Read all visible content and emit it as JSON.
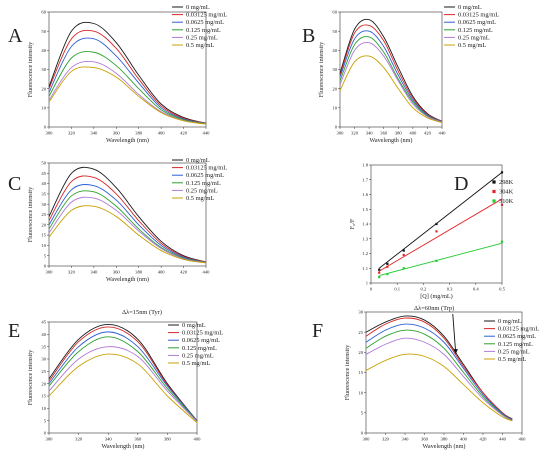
{
  "chart_data": [
    {
      "panel": "A",
      "type": "line",
      "xlabel": "Wavelength (nm)",
      "ylabel": "Fluorescence intensity",
      "xlim": [
        300,
        440
      ],
      "ylim": [
        0,
        60
      ],
      "xticks": [
        "300",
        "320",
        "340",
        "360",
        "380",
        "400",
        "420",
        "440"
      ],
      "yticks": [
        "0",
        "10",
        "20",
        "30",
        "40",
        "50",
        "60"
      ],
      "legend": "top-right",
      "x": [
        300,
        320,
        340,
        360,
        380,
        400,
        420,
        440
      ],
      "series": [
        {
          "name": "0 mg/mL",
          "color": "#1a1a1a",
          "values": [
            21,
            50,
            54,
            44,
            27,
            12,
            5,
            2
          ]
        },
        {
          "name": "0.03125 mg/mL",
          "color": "#d62728",
          "values": [
            20,
            46,
            50,
            41,
            25,
            11,
            4.6,
            2
          ]
        },
        {
          "name": "0.0625 mg/mL",
          "color": "#2d5fd3",
          "values": [
            18,
            42,
            46,
            37,
            23,
            10,
            4.2,
            1.8
          ]
        },
        {
          "name": "0.125 mg/mL",
          "color": "#2ca02c",
          "values": [
            16,
            36,
            39,
            32,
            20,
            9,
            3.8,
            1.7
          ]
        },
        {
          "name": "0.25 mg/mL",
          "color": "#b07ad8",
          "values": [
            14,
            31,
            34,
            28,
            17,
            8,
            3.4,
            1.6
          ]
        },
        {
          "name": "0.5 mg/mL",
          "color": "#c8a000",
          "values": [
            13,
            29,
            31,
            26,
            16,
            7.5,
            3.2,
            1.5
          ]
        }
      ]
    },
    {
      "panel": "B",
      "type": "line",
      "xlabel": "Wavelength (nm)",
      "ylabel": "Fluorescence intensity",
      "xlim": [
        300,
        440
      ],
      "ylim": [
        0,
        60
      ],
      "xticks": [
        "300",
        "320",
        "340",
        "360",
        "380",
        "400",
        "420",
        "440"
      ],
      "yticks": [
        "0",
        "10",
        "20",
        "30",
        "40",
        "50",
        "60"
      ],
      "legend": "top-right",
      "x": [
        300,
        320,
        340,
        360,
        380,
        400,
        420,
        440
      ],
      "series": [
        {
          "name": "0 mg/mL",
          "color": "#1a1a1a",
          "values": [
            28,
            51,
            56,
            47,
            31,
            16,
            7,
            3
          ]
        },
        {
          "name": "0.03125 mg/mL",
          "color": "#d62728",
          "values": [
            27,
            49,
            53,
            45,
            29,
            15,
            6.6,
            3
          ]
        },
        {
          "name": "0.0625 mg/mL",
          "color": "#2d5fd3",
          "values": [
            26,
            46,
            50,
            42,
            27,
            14,
            6.2,
            2.8
          ]
        },
        {
          "name": "0.125 mg/mL",
          "color": "#2ca02c",
          "values": [
            24,
            43,
            47,
            39,
            25,
            13,
            5.8,
            2.6
          ]
        },
        {
          "name": "0.25 mg/mL",
          "color": "#b07ad8",
          "values": [
            22,
            40,
            44,
            37,
            24,
            12,
            5.4,
            2.5
          ]
        },
        {
          "name": "0.5 mg/mL",
          "color": "#c8a000",
          "values": [
            19,
            34,
            37,
            31,
            20,
            10,
            4.8,
            2.3
          ]
        }
      ]
    },
    {
      "panel": "C",
      "type": "line",
      "xlabel": "Wavelength (nm)",
      "ylabel": "Fluorescence intensity",
      "xlim": [
        300,
        440
      ],
      "ylim": [
        0,
        50
      ],
      "xticks": [
        "300",
        "320",
        "340",
        "360",
        "380",
        "400",
        "420",
        "440"
      ],
      "yticks": [
        "0",
        "5",
        "10",
        "15",
        "20",
        "25",
        "30",
        "35",
        "40",
        "45",
        "50"
      ],
      "legend": "top-right",
      "x": [
        300,
        320,
        340,
        360,
        380,
        400,
        420,
        440
      ],
      "series": [
        {
          "name": "0 mg/mL",
          "color": "#1a1a1a",
          "values": [
            24,
            45,
            47,
            38,
            24,
            12,
            5,
            2
          ]
        },
        {
          "name": "0.03125 mg/mL",
          "color": "#d62728",
          "values": [
            22,
            41,
            43,
            35,
            22,
            11,
            4.6,
            2
          ]
        },
        {
          "name": "0.0625 mg/mL",
          "color": "#2d5fd3",
          "values": [
            20,
            37,
            39,
            32,
            20,
            10,
            4.2,
            1.8
          ]
        },
        {
          "name": "0.125 mg/mL",
          "color": "#2ca02c",
          "values": [
            18,
            34,
            36,
            29,
            18,
            9,
            3.8,
            1.7
          ]
        },
        {
          "name": "0.25 mg/mL",
          "color": "#b07ad8",
          "values": [
            16,
            31,
            33,
            27,
            17,
            8.5,
            3.5,
            1.6
          ]
        },
        {
          "name": "0.5 mg/mL",
          "color": "#c8a000",
          "values": [
            14,
            27,
            29,
            24,
            15,
            7.5,
            3.2,
            1.5
          ]
        }
      ]
    },
    {
      "panel": "D",
      "type": "scatter",
      "xlabel": "[Q] (mg/mL)",
      "ylabel": "F₀/F",
      "xlim": [
        0,
        0.5
      ],
      "ylim": [
        1.0,
        1.8
      ],
      "xticks": [
        "0",
        "0.1",
        "0.2",
        "0.3",
        "0.4",
        "0.5"
      ],
      "yticks": [
        "1",
        "1.1",
        "1.2",
        "1.3",
        "1.4",
        "1.5",
        "1.6",
        "1.7",
        "1.8"
      ],
      "legend": "top-right",
      "series": [
        {
          "name": "298K",
          "color": "#111111",
          "x": [
            0.03125,
            0.0625,
            0.125,
            0.25,
            0.5
          ],
          "y": [
            1.09,
            1.13,
            1.22,
            1.4,
            1.75
          ],
          "fit": [
            [
              0.03125,
              1.1
            ],
            [
              0.5,
              1.75
            ]
          ]
        },
        {
          "name": "304K",
          "color": "#e0262a",
          "x": [
            0.03125,
            0.0625,
            0.125,
            0.25,
            0.5
          ],
          "y": [
            1.07,
            1.11,
            1.19,
            1.35,
            1.53
          ],
          "fit": [
            [
              0.03125,
              1.08
            ],
            [
              0.5,
              1.57
            ]
          ]
        },
        {
          "name": "310K",
          "color": "#22cc33",
          "x": [
            0.03125,
            0.0625,
            0.125,
            0.25,
            0.5
          ],
          "y": [
            1.04,
            1.06,
            1.1,
            1.15,
            1.28
          ],
          "fit": [
            [
              0.03125,
              1.05
            ],
            [
              0.5,
              1.27
            ]
          ]
        }
      ]
    },
    {
      "panel": "E",
      "type": "line",
      "annotation": "Δλ=15nm (Tyr)",
      "xlabel": "Wavelength (nm)",
      "ylabel": "Fluorescence intensity",
      "xlim": [
        300,
        400
      ],
      "ylim": [
        0,
        45
      ],
      "xticks": [
        "300",
        "320",
        "340",
        "360",
        "380",
        "400"
      ],
      "yticks": [
        "0",
        "5",
        "10",
        "15",
        "20",
        "25",
        "30",
        "35",
        "40",
        "45"
      ],
      "legend": "top-right",
      "x": [
        300,
        320,
        340,
        360,
        380,
        400
      ],
      "series": [
        {
          "name": "0 mg/mL",
          "color": "#1a1a1a",
          "values": [
            22,
            38,
            44,
            38,
            20,
            5
          ]
        },
        {
          "name": "0.03125 mg/mL",
          "color": "#d62728",
          "values": [
            21,
            37,
            43,
            37,
            19.5,
            5
          ]
        },
        {
          "name": "0.0625 mg/mL",
          "color": "#2d5fd3",
          "values": [
            20,
            35,
            41,
            35,
            19,
            5
          ]
        },
        {
          "name": "0.125 mg/mL",
          "color": "#2ca02c",
          "values": [
            19,
            33,
            39,
            33,
            18,
            4.8
          ]
        },
        {
          "name": "0.25 mg/mL",
          "color": "#b07ad8",
          "values": [
            17,
            30,
            35,
            31,
            17,
            4.6
          ]
        },
        {
          "name": "0.5 mg/mL",
          "color": "#c8a000",
          "values": [
            15,
            27,
            32,
            28,
            15,
            4.2
          ]
        }
      ]
    },
    {
      "panel": "F",
      "type": "line",
      "annotation": "Δλ=60nm (Trp)",
      "xlabel": "Wavelength (nm)",
      "ylabel": "Fluorescence intensity",
      "xlim": [
        300,
        460
      ],
      "ylim": [
        0,
        30
      ],
      "xticks": [
        "300",
        "320",
        "340",
        "360",
        "380",
        "400",
        "420",
        "440",
        "460"
      ],
      "yticks": [
        "0",
        "5",
        "10",
        "15",
        "20",
        "25",
        "30"
      ],
      "legend": "top-right",
      "x": [
        300,
        320,
        340,
        360,
        380,
        400,
        420,
        440,
        450
      ],
      "series": [
        {
          "name": "0 mg/mL",
          "color": "#1a1a1a",
          "values": [
            25,
            27.5,
            29,
            28,
            24,
            17,
            10,
            5,
            3.5
          ]
        },
        {
          "name": "0.03125 mg/mL",
          "color": "#d62728",
          "values": [
            24,
            27,
            28.5,
            27.5,
            23.5,
            16.5,
            10,
            5,
            3.4
          ]
        },
        {
          "name": "0.0625 mg/mL",
          "color": "#2d5fd3",
          "values": [
            22.5,
            25.5,
            27,
            26,
            22.5,
            16,
            9.5,
            4.8,
            3.3
          ]
        },
        {
          "name": "0.125 mg/mL",
          "color": "#2ca02c",
          "values": [
            21,
            24,
            25.5,
            24.5,
            21,
            15,
            9,
            4.6,
            3.2
          ]
        },
        {
          "name": "0.25 mg/mL",
          "color": "#b07ad8",
          "values": [
            19.5,
            22,
            23.5,
            22.5,
            19.5,
            14,
            8.5,
            4.4,
            3.1
          ]
        },
        {
          "name": "0.5 mg/mL",
          "color": "#c8a000",
          "values": [
            15.5,
            18,
            19.5,
            19,
            16.5,
            12,
            7.5,
            4,
            3
          ]
        }
      ]
    }
  ]
}
